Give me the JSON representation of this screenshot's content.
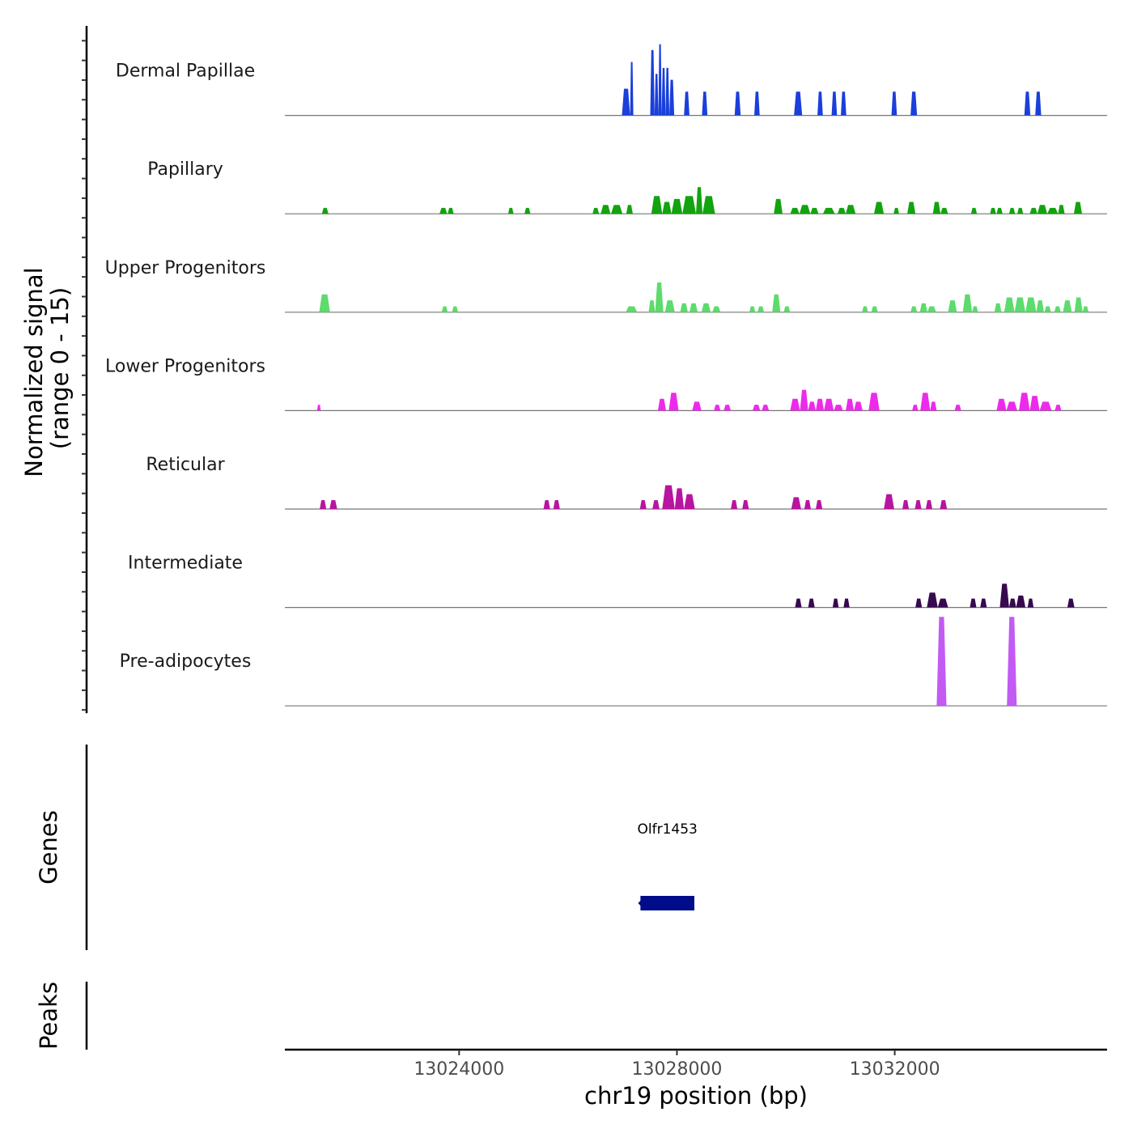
{
  "chart_data": {
    "type": "area",
    "title": "",
    "ylabel_line1": "Normalized signal",
    "ylabel_line2": "(range 0 - 15)",
    "xlabel": "chr19 position (bp)",
    "xlim": [
      13020800,
      13035900
    ],
    "ylim": [
      0,
      15
    ],
    "x_ticks": [
      13024000,
      13028000,
      13032000
    ],
    "x_tick_labels": [
      "13024000",
      "13028000",
      "13032000"
    ],
    "tracks": [
      {
        "name": "Dermal Papillae",
        "color": "#1a3fdb",
        "peaks": [
          {
            "s": 13026990,
            "e": 13027140,
            "h": 4.5
          },
          {
            "s": 13027140,
            "e": 13027200,
            "h": 9
          },
          {
            "s": 13027510,
            "e": 13027590,
            "h": 11
          },
          {
            "s": 13027590,
            "e": 13027660,
            "h": 7
          },
          {
            "s": 13027660,
            "e": 13027720,
            "h": 12
          },
          {
            "s": 13027720,
            "e": 13027790,
            "h": 8
          },
          {
            "s": 13027790,
            "e": 13027860,
            "h": 8
          },
          {
            "s": 13027860,
            "e": 13027950,
            "h": 6
          },
          {
            "s": 13028130,
            "e": 13028230,
            "h": 4
          },
          {
            "s": 13028460,
            "e": 13028560,
            "h": 4
          },
          {
            "s": 13029060,
            "e": 13029170,
            "h": 4
          },
          {
            "s": 13029420,
            "e": 13029520,
            "h": 4
          },
          {
            "s": 13030150,
            "e": 13030300,
            "h": 4
          },
          {
            "s": 13030580,
            "e": 13030680,
            "h": 4
          },
          {
            "s": 13030840,
            "e": 13030940,
            "h": 4
          },
          {
            "s": 13031010,
            "e": 13031110,
            "h": 4
          },
          {
            "s": 13031940,
            "e": 13032040,
            "h": 4
          },
          {
            "s": 13032290,
            "e": 13032410,
            "h": 4
          },
          {
            "s": 13034380,
            "e": 13034490,
            "h": 4
          },
          {
            "s": 13034580,
            "e": 13034690,
            "h": 4
          }
        ]
      },
      {
        "name": "Papillary",
        "color": "#12a30e",
        "peaks": [
          {
            "s": 13021480,
            "e": 13021600,
            "h": 1
          },
          {
            "s": 13023640,
            "e": 13023780,
            "h": 1
          },
          {
            "s": 13023790,
            "e": 13023900,
            "h": 1
          },
          {
            "s": 13024900,
            "e": 13025000,
            "h": 1
          },
          {
            "s": 13025200,
            "e": 13025310,
            "h": 1
          },
          {
            "s": 13026450,
            "e": 13026570,
            "h": 1
          },
          {
            "s": 13026600,
            "e": 13026780,
            "h": 1.5
          },
          {
            "s": 13026790,
            "e": 13027000,
            "h": 1.5
          },
          {
            "s": 13027070,
            "e": 13027190,
            "h": 1.5
          },
          {
            "s": 13027530,
            "e": 13027730,
            "h": 3
          },
          {
            "s": 13027730,
            "e": 13027900,
            "h": 2
          },
          {
            "s": 13027900,
            "e": 13028100,
            "h": 2.5
          },
          {
            "s": 13028100,
            "e": 13028350,
            "h": 3
          },
          {
            "s": 13028350,
            "e": 13028470,
            "h": 4.5
          },
          {
            "s": 13028470,
            "e": 13028700,
            "h": 3
          },
          {
            "s": 13029780,
            "e": 13029940,
            "h": 2.5
          },
          {
            "s": 13030080,
            "e": 13030250,
            "h": 1
          },
          {
            "s": 13030250,
            "e": 13030450,
            "h": 1.5
          },
          {
            "s": 13030450,
            "e": 13030600,
            "h": 1
          },
          {
            "s": 13030680,
            "e": 13030900,
            "h": 1
          },
          {
            "s": 13030950,
            "e": 13031100,
            "h": 1
          },
          {
            "s": 13031100,
            "e": 13031280,
            "h": 1.5
          },
          {
            "s": 13031620,
            "e": 13031800,
            "h": 2
          },
          {
            "s": 13031980,
            "e": 13032080,
            "h": 1
          },
          {
            "s": 13032230,
            "e": 13032380,
            "h": 2
          },
          {
            "s": 13032700,
            "e": 13032840,
            "h": 2
          },
          {
            "s": 13032840,
            "e": 13032980,
            "h": 1
          },
          {
            "s": 13033400,
            "e": 13033510,
            "h": 1
          },
          {
            "s": 13033750,
            "e": 13033860,
            "h": 1
          },
          {
            "s": 13033870,
            "e": 13033980,
            "h": 1
          },
          {
            "s": 13034100,
            "e": 13034210,
            "h": 1
          },
          {
            "s": 13034250,
            "e": 13034360,
            "h": 1
          },
          {
            "s": 13034480,
            "e": 13034620,
            "h": 1
          },
          {
            "s": 13034620,
            "e": 13034800,
            "h": 1.5
          },
          {
            "s": 13034800,
            "e": 13035000,
            "h": 1
          },
          {
            "s": 13035000,
            "e": 13035120,
            "h": 1.5
          },
          {
            "s": 13035290,
            "e": 13035440,
            "h": 2
          }
        ]
      },
      {
        "name": "Upper Progenitors",
        "color": "#5ddb6c",
        "peaks": [
          {
            "s": 13021430,
            "e": 13021630,
            "h": 3
          },
          {
            "s": 13023680,
            "e": 13023790,
            "h": 1
          },
          {
            "s": 13023870,
            "e": 13023980,
            "h": 1
          },
          {
            "s": 13027060,
            "e": 13027270,
            "h": 1
          },
          {
            "s": 13027480,
            "e": 13027600,
            "h": 2
          },
          {
            "s": 13027600,
            "e": 13027750,
            "h": 5
          },
          {
            "s": 13027780,
            "e": 13027960,
            "h": 2
          },
          {
            "s": 13028060,
            "e": 13028200,
            "h": 1.5
          },
          {
            "s": 13028230,
            "e": 13028380,
            "h": 1.5
          },
          {
            "s": 13028450,
            "e": 13028620,
            "h": 1.5
          },
          {
            "s": 13028650,
            "e": 13028800,
            "h": 1
          },
          {
            "s": 13029330,
            "e": 13029440,
            "h": 1
          },
          {
            "s": 13029480,
            "e": 13029600,
            "h": 1
          },
          {
            "s": 13029750,
            "e": 13029900,
            "h": 3
          },
          {
            "s": 13029960,
            "e": 13030080,
            "h": 1
          },
          {
            "s": 13031400,
            "e": 13031510,
            "h": 1
          },
          {
            "s": 13031570,
            "e": 13031690,
            "h": 1
          },
          {
            "s": 13032290,
            "e": 13032410,
            "h": 1
          },
          {
            "s": 13032460,
            "e": 13032600,
            "h": 1.5
          },
          {
            "s": 13032600,
            "e": 13032760,
            "h": 1
          },
          {
            "s": 13032980,
            "e": 13033140,
            "h": 2
          },
          {
            "s": 13033250,
            "e": 13033420,
            "h": 3
          },
          {
            "s": 13033420,
            "e": 13033530,
            "h": 1
          },
          {
            "s": 13033830,
            "e": 13033960,
            "h": 1.5
          },
          {
            "s": 13034010,
            "e": 13034200,
            "h": 2.5
          },
          {
            "s": 13034200,
            "e": 13034400,
            "h": 2.5
          },
          {
            "s": 13034400,
            "e": 13034600,
            "h": 2.5
          },
          {
            "s": 13034600,
            "e": 13034740,
            "h": 2
          },
          {
            "s": 13034750,
            "e": 13034870,
            "h": 1
          },
          {
            "s": 13034930,
            "e": 13035050,
            "h": 1
          },
          {
            "s": 13035090,
            "e": 13035250,
            "h": 2
          },
          {
            "s": 13035300,
            "e": 13035450,
            "h": 2.5
          },
          {
            "s": 13035450,
            "e": 13035560,
            "h": 1
          }
        ]
      },
      {
        "name": "Lower Progenitors",
        "color": "#ec2bea",
        "peaks": [
          {
            "s": 13021390,
            "e": 13021460,
            "h": 1
          },
          {
            "s": 13027650,
            "e": 13027800,
            "h": 2
          },
          {
            "s": 13027850,
            "e": 13028030,
            "h": 3
          },
          {
            "s": 13028280,
            "e": 13028450,
            "h": 1.5
          },
          {
            "s": 13028680,
            "e": 13028800,
            "h": 1
          },
          {
            "s": 13028860,
            "e": 13028990,
            "h": 1
          },
          {
            "s": 13029390,
            "e": 13029530,
            "h": 1
          },
          {
            "s": 13029560,
            "e": 13029690,
            "h": 1
          },
          {
            "s": 13030080,
            "e": 13030260,
            "h": 2
          },
          {
            "s": 13030260,
            "e": 13030410,
            "h": 3.5
          },
          {
            "s": 13030410,
            "e": 13030550,
            "h": 1.5
          },
          {
            "s": 13030550,
            "e": 13030700,
            "h": 2
          },
          {
            "s": 13030700,
            "e": 13030880,
            "h": 2
          },
          {
            "s": 13030880,
            "e": 13031050,
            "h": 1
          },
          {
            "s": 13031100,
            "e": 13031250,
            "h": 2
          },
          {
            "s": 13031250,
            "e": 13031410,
            "h": 1.5
          },
          {
            "s": 13031520,
            "e": 13031720,
            "h": 3
          },
          {
            "s": 13032320,
            "e": 13032430,
            "h": 1
          },
          {
            "s": 13032470,
            "e": 13032650,
            "h": 3
          },
          {
            "s": 13032650,
            "e": 13032770,
            "h": 1.5
          },
          {
            "s": 13033100,
            "e": 13033220,
            "h": 1
          },
          {
            "s": 13033870,
            "e": 13034050,
            "h": 2
          },
          {
            "s": 13034050,
            "e": 13034250,
            "h": 1.5
          },
          {
            "s": 13034280,
            "e": 13034480,
            "h": 3
          },
          {
            "s": 13034480,
            "e": 13034660,
            "h": 2.5
          },
          {
            "s": 13034660,
            "e": 13034880,
            "h": 1.5
          },
          {
            "s": 13034940,
            "e": 13035060,
            "h": 1
          }
        ]
      },
      {
        "name": "Reticular",
        "color": "#b8149f",
        "peaks": [
          {
            "s": 13021440,
            "e": 13021560,
            "h": 1.5
          },
          {
            "s": 13021620,
            "e": 13021760,
            "h": 1.5
          },
          {
            "s": 13025550,
            "e": 13025670,
            "h": 1.5
          },
          {
            "s": 13025730,
            "e": 13025850,
            "h": 1.5
          },
          {
            "s": 13027320,
            "e": 13027440,
            "h": 1.5
          },
          {
            "s": 13027550,
            "e": 13027680,
            "h": 1.5
          },
          {
            "s": 13027730,
            "e": 13027960,
            "h": 4
          },
          {
            "s": 13027960,
            "e": 13028130,
            "h": 3.5
          },
          {
            "s": 13028130,
            "e": 13028330,
            "h": 2.5
          },
          {
            "s": 13028990,
            "e": 13029110,
            "h": 1.5
          },
          {
            "s": 13029200,
            "e": 13029320,
            "h": 1.5
          },
          {
            "s": 13030100,
            "e": 13030280,
            "h": 2
          },
          {
            "s": 13030340,
            "e": 13030460,
            "h": 1.5
          },
          {
            "s": 13030550,
            "e": 13030670,
            "h": 1.5
          },
          {
            "s": 13031800,
            "e": 13031990,
            "h": 2.5
          },
          {
            "s": 13032140,
            "e": 13032260,
            "h": 1.5
          },
          {
            "s": 13032370,
            "e": 13032490,
            "h": 1.5
          },
          {
            "s": 13032570,
            "e": 13032690,
            "h": 1.5
          },
          {
            "s": 13032830,
            "e": 13032960,
            "h": 1.5
          }
        ]
      },
      {
        "name": "Intermediate",
        "color": "#37094f",
        "peaks": [
          {
            "s": 13030170,
            "e": 13030290,
            "h": 1.5
          },
          {
            "s": 13030410,
            "e": 13030530,
            "h": 1.5
          },
          {
            "s": 13030860,
            "e": 13030970,
            "h": 1.5
          },
          {
            "s": 13031060,
            "e": 13031170,
            "h": 1.5
          },
          {
            "s": 13032380,
            "e": 13032500,
            "h": 1.5
          },
          {
            "s": 13032590,
            "e": 13032790,
            "h": 2.5
          },
          {
            "s": 13032790,
            "e": 13032980,
            "h": 1.5
          },
          {
            "s": 13033380,
            "e": 13033500,
            "h": 1.5
          },
          {
            "s": 13033570,
            "e": 13033690,
            "h": 1.5
          },
          {
            "s": 13033930,
            "e": 13034100,
            "h": 4
          },
          {
            "s": 13034100,
            "e": 13034230,
            "h": 1.5
          },
          {
            "s": 13034230,
            "e": 13034400,
            "h": 2
          },
          {
            "s": 13034440,
            "e": 13034550,
            "h": 1.5
          },
          {
            "s": 13035170,
            "e": 13035300,
            "h": 1.5
          }
        ]
      },
      {
        "name": "Pre-adipocytes",
        "color": "#c25af4",
        "peaks": [
          {
            "s": 13032770,
            "e": 13032950,
            "h": 15
          },
          {
            "s": 13034060,
            "e": 13034240,
            "h": 15
          }
        ]
      }
    ],
    "genes_panel_label": "Genes",
    "genes": [
      {
        "name": "Olfr1453",
        "start": 13027330,
        "end": 13028320,
        "strand": "-",
        "color": "#000c8a"
      }
    ],
    "peaks_panel_label": "Peaks",
    "peak_regions": []
  }
}
